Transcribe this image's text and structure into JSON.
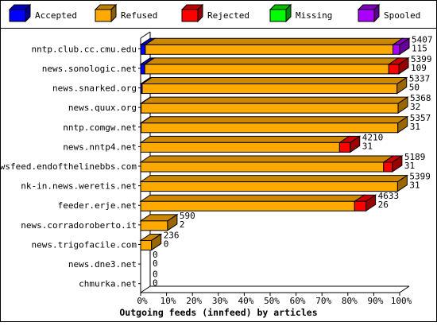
{
  "chart_data": {
    "type": "bar",
    "orientation": "horizontal",
    "stacked": true,
    "three_d": true,
    "title": "Outgoing feeds (innfeed) by articles",
    "xlim": [
      0,
      100
    ],
    "x_ticks": [
      "0%",
      "10%",
      "20%",
      "30%",
      "40%",
      "50%",
      "60%",
      "70%",
      "80%",
      "90%",
      "100%"
    ],
    "grid": false,
    "legend_position": "top",
    "legend": [
      {
        "name": "Accepted",
        "color": "#0000ff"
      },
      {
        "name": "Refused",
        "color": "#ffaa00"
      },
      {
        "name": "Rejected",
        "color": "#ff0000"
      },
      {
        "name": "Missing",
        "color": "#00ff00"
      },
      {
        "name": "Spooled",
        "color": "#aa00ff"
      }
    ],
    "categories": [
      "nntp.club.cc.cmu.edu",
      "news.sonologic.net",
      "news.snarked.org",
      "news.quux.org",
      "nntp.comgw.net",
      "news.nntp4.net",
      "newsfeed.endofthelinebbs.com",
      "nk-in.news.weretis.net",
      "feeder.erje.net",
      "news.corradoroberto.it",
      "news.trigofacile.com",
      "news.dne3.net",
      "chmurka.net"
    ],
    "series": [
      {
        "name": "Accepted",
        "values": [
          1.8,
          1.6,
          0.6,
          0.2,
          0.2,
          0,
          0,
          0,
          0,
          0,
          0,
          0,
          0
        ]
      },
      {
        "name": "Refused",
        "values": [
          95.6,
          94.2,
          98.4,
          99.2,
          99.1,
          76.8,
          93.8,
          99.2,
          82.6,
          10.4,
          4.2,
          0,
          0
        ]
      },
      {
        "name": "Rejected",
        "values": [
          0,
          3.9,
          0,
          0,
          0,
          4.1,
          3.4,
          0,
          4.4,
          0,
          0,
          0,
          0
        ]
      },
      {
        "name": "Missing",
        "values": [
          0,
          0,
          0,
          0,
          0,
          0,
          0,
          0,
          0,
          0,
          0,
          0,
          0
        ]
      },
      {
        "name": "Spooled",
        "values": [
          2.6,
          0,
          0,
          0,
          0,
          0,
          0,
          0,
          0,
          0,
          0,
          0,
          0
        ]
      }
    ],
    "bar_labels": [
      [
        "5407",
        "115"
      ],
      [
        "5399",
        "109"
      ],
      [
        "5337",
        "50"
      ],
      [
        "5368",
        "32"
      ],
      [
        "5357",
        "31"
      ],
      [
        "4210",
        "31"
      ],
      [
        "5189",
        "31"
      ],
      [
        "5399",
        "31"
      ],
      [
        "4633",
        "26"
      ],
      [
        "590",
        "2"
      ],
      [
        "236",
        "0"
      ],
      [
        "0",
        "0"
      ],
      [
        "0",
        "0"
      ]
    ]
  }
}
